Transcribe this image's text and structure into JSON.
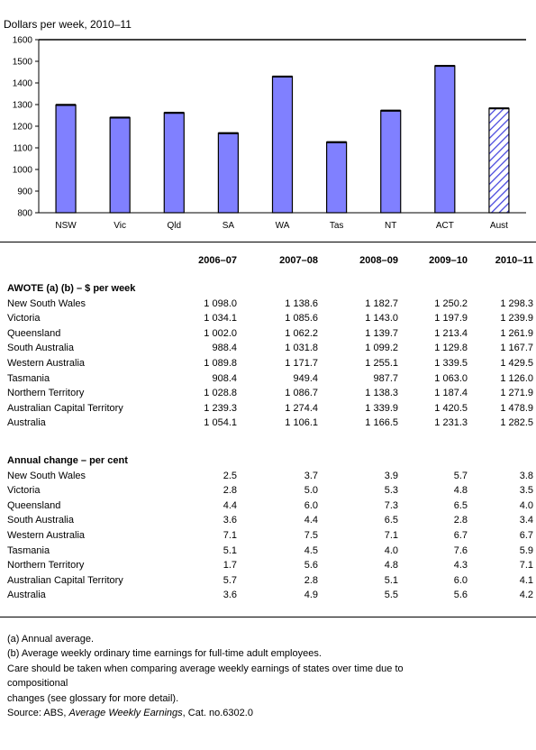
{
  "chart_data": {
    "type": "bar",
    "title": "Dollars per week, 2010–11",
    "categories": [
      "NSW",
      "Vic",
      "Qld",
      "SA",
      "WA",
      "Tas",
      "NT",
      "ACT",
      "Aust"
    ],
    "values": [
      1298.3,
      1239.9,
      1261.9,
      1167.7,
      1429.5,
      1126.0,
      1271.9,
      1478.9,
      1282.5
    ],
    "ylim": [
      800,
      1600
    ],
    "yticks": [
      800,
      900,
      1000,
      1100,
      1200,
      1300,
      1400,
      1500,
      1600
    ],
    "colors": {
      "bar": "#8080ff",
      "highlight_bar": "hatched blue (Aust)"
    }
  },
  "table": {
    "columns": [
      "2006–07",
      "2007–08",
      "2008–09",
      "2009–10",
      "2010–11"
    ],
    "awote_title": "AWOTE (a) (b) – $ per week",
    "awote_rows": [
      {
        "label": "New South Wales",
        "values": [
          "1 098.0",
          "1 138.6",
          "1 182.7",
          "1 250.2",
          "1 298.3"
        ]
      },
      {
        "label": "Victoria",
        "values": [
          "1 034.1",
          "1 085.6",
          "1 143.0",
          "1 197.9",
          "1 239.9"
        ]
      },
      {
        "label": "Queensland",
        "values": [
          "1 002.0",
          "1 062.2",
          "1 139.7",
          "1 213.4",
          "1 261.9"
        ]
      },
      {
        "label": "South Australia",
        "values": [
          "988.4",
          "1 031.8",
          "1 099.2",
          "1 129.8",
          "1 167.7"
        ]
      },
      {
        "label": "Western Australia",
        "values": [
          "1 089.8",
          "1 171.7",
          "1 255.1",
          "1 339.5",
          "1 429.5"
        ]
      },
      {
        "label": "Tasmania",
        "values": [
          "908.4",
          "949.4",
          "987.7",
          "1 063.0",
          "1 126.0"
        ]
      },
      {
        "label": "Northern Territory",
        "values": [
          "1 028.8",
          "1 086.7",
          "1 138.3",
          "1 187.4",
          "1 271.9"
        ]
      },
      {
        "label": "Australian Capital Territory",
        "values": [
          "1 239.3",
          "1 274.4",
          "1 339.9",
          "1 420.5",
          "1 478.9"
        ]
      },
      {
        "label": "Australia",
        "values": [
          "1 054.1",
          "1 106.1",
          "1 166.5",
          "1 231.3",
          "1 282.5"
        ]
      }
    ],
    "change_title": "Annual change – per cent",
    "change_rows": [
      {
        "label": "New South Wales",
        "values": [
          "2.5",
          "3.7",
          "3.9",
          "5.7",
          "3.8"
        ]
      },
      {
        "label": "Victoria",
        "values": [
          "2.8",
          "5.0",
          "5.3",
          "4.8",
          "3.5"
        ]
      },
      {
        "label": "Queensland",
        "values": [
          "4.4",
          "6.0",
          "7.3",
          "6.5",
          "4.0"
        ]
      },
      {
        "label": "South Australia",
        "values": [
          "3.6",
          "4.4",
          "6.5",
          "2.8",
          "3.4"
        ]
      },
      {
        "label": "Western Australia",
        "values": [
          "7.1",
          "7.5",
          "7.1",
          "6.7",
          "6.7"
        ]
      },
      {
        "label": "Tasmania",
        "values": [
          "5.1",
          "4.5",
          "4.0",
          "7.6",
          "5.9"
        ]
      },
      {
        "label": "Northern Territory",
        "values": [
          "1.7",
          "5.6",
          "4.8",
          "4.3",
          "7.1"
        ]
      },
      {
        "label": "Australian Capital Territory",
        "values": [
          "5.7",
          "2.8",
          "5.1",
          "6.0",
          "4.1"
        ]
      },
      {
        "label": "Australia",
        "values": [
          "3.6",
          "4.9",
          "5.5",
          "5.6",
          "4.2"
        ]
      }
    ]
  },
  "footnotes": {
    "a": "(a) Annual average.",
    "b": "(b) Average weekly ordinary time earnings for full-time adult employees.",
    "care_1": "Care should be taken when comparing average weekly earnings of states over time due to",
    "care_2": "compositional",
    "care_3": "changes (see glossary for more detail).",
    "source_prefix": "Source: ABS, ",
    "source_title": "Average Weekly Earnings",
    "source_suffix": ", Cat. no.6302.0"
  }
}
